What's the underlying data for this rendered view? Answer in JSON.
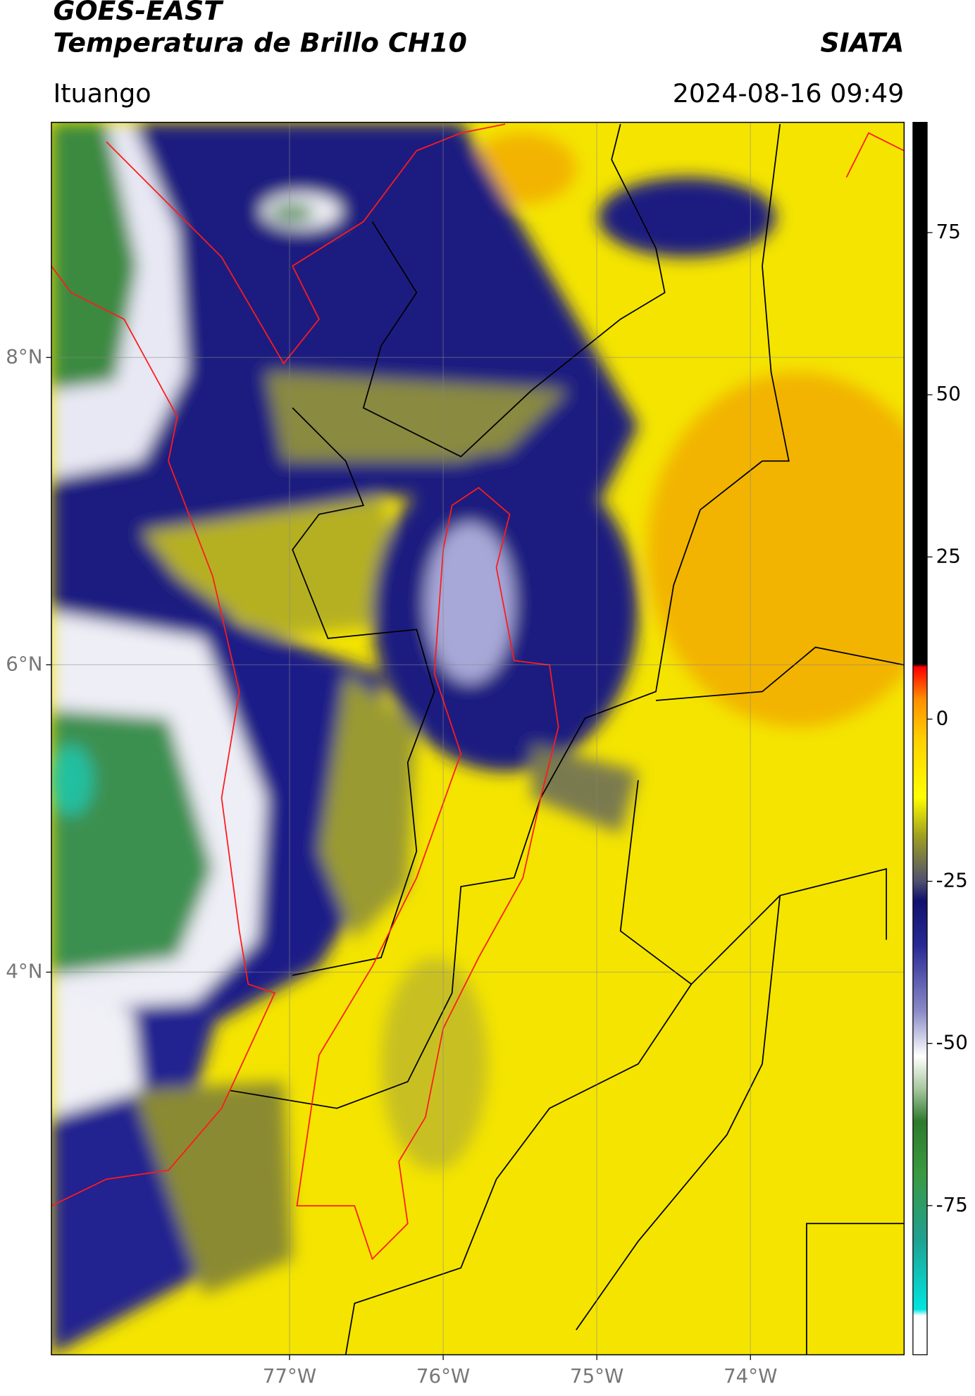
{
  "chart_data": {
    "type": "map",
    "title": "GOES-EAST",
    "subtitle": "Temperatura de Brillo CH10",
    "source": "SIATA",
    "location": "Ituango",
    "timestamp": "2024-08-16 09:49",
    "xlim": [
      -78.55,
      -73.0
    ],
    "ylim": [
      1.51,
      9.53
    ],
    "xticks": [
      {
        "value": -77,
        "label": "77°W"
      },
      {
        "value": -76,
        "label": "76°W"
      },
      {
        "value": -75,
        "label": "75°W"
      },
      {
        "value": -74,
        "label": "74°W"
      }
    ],
    "yticks": [
      {
        "value": 8,
        "label": "8°N"
      },
      {
        "value": 6,
        "label": "6°N"
      },
      {
        "value": 4,
        "label": "4°N"
      }
    ],
    "grid": true,
    "colorbar": {
      "clim": [
        -98,
        92
      ],
      "ticks": [
        75,
        50,
        25,
        0,
        -25,
        -50,
        -75
      ],
      "colormap": [
        {
          "value": -98,
          "color": "#ffffff"
        },
        {
          "value": -92,
          "color": "#ffffff"
        },
        {
          "value": -91,
          "color": "#00e5e0"
        },
        {
          "value": -80,
          "color": "#20a090"
        },
        {
          "value": -70,
          "color": "#3a9a40"
        },
        {
          "value": -62,
          "color": "#2e7a2e"
        },
        {
          "value": -57,
          "color": "#a8c8a0"
        },
        {
          "value": -52,
          "color": "#ffffff"
        },
        {
          "value": -45,
          "color": "#8a8ac8"
        },
        {
          "value": -35,
          "color": "#2a2a96"
        },
        {
          "value": -28,
          "color": "#10106e"
        },
        {
          "value": -25,
          "color": "#505070"
        },
        {
          "value": -18,
          "color": "#a0a020"
        },
        {
          "value": -12,
          "color": "#ffff00"
        },
        {
          "value": -3,
          "color": "#ffd000"
        },
        {
          "value": 3,
          "color": "#ff9000"
        },
        {
          "value": 8,
          "color": "#ff0000"
        },
        {
          "value": 8.5,
          "color": "#000000"
        },
        {
          "value": 92,
          "color": "#000000"
        }
      ]
    }
  }
}
